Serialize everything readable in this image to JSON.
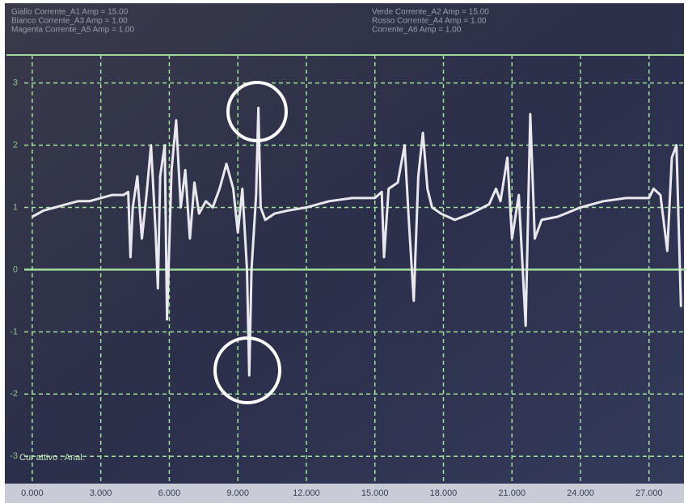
{
  "chart_data": {
    "type": "line",
    "header_left": [
      "Giallo  Corrente_A1  Amp = 15.00",
      "Bianco  Corrente_A3  Amp = 1.00",
      "Magenta  Corrente_A5  Amp = 1.00"
    ],
    "header_right": [
      "Verde  Corrente_A2  Amp = 15.00",
      "Rosso  Corrente_A4  Amp = 1.00",
      "Corrente_A6  Amp = 1.00"
    ],
    "cursor_label": "Cur attivo : Anal.",
    "color": "#e8e8ee",
    "grid": true,
    "xlim": [
      -0.35,
      28.6
    ],
    "ylim": [
      -3.4,
      3.45
    ],
    "xticks": [
      {
        "value": 0,
        "label": "0.000"
      },
      {
        "value": 3,
        "label": "3.000"
      },
      {
        "value": 6,
        "label": "6.000"
      },
      {
        "value": 9,
        "label": "9.000"
      },
      {
        "value": 12,
        "label": "12.000"
      },
      {
        "value": 15,
        "label": "15.000"
      },
      {
        "value": 18,
        "label": "18.000"
      },
      {
        "value": 21,
        "label": "21.000"
      },
      {
        "value": 24,
        "label": "24.000"
      },
      {
        "value": 27,
        "label": "27.000"
      }
    ],
    "yticks": [
      3,
      2,
      1,
      0,
      -1,
      -2,
      -3
    ],
    "x": [
      0.0,
      0.5,
      1.0,
      1.5,
      2.0,
      2.5,
      3.0,
      3.5,
      4.0,
      4.2,
      4.3,
      4.4,
      4.6,
      4.8,
      5.0,
      5.2,
      5.4,
      5.5,
      5.6,
      5.8,
      5.9,
      6.1,
      6.3,
      6.5,
      6.7,
      6.9,
      7.1,
      7.3,
      7.6,
      7.9,
      8.2,
      8.5,
      8.8,
      9.0,
      9.2,
      9.4,
      9.5,
      9.6,
      9.8,
      9.9,
      10.0,
      10.2,
      10.6,
      11.2,
      12.0,
      13.0,
      14.0,
      15.0,
      15.3,
      15.4,
      15.6,
      16.0,
      16.3,
      16.5,
      16.7,
      16.9,
      17.1,
      17.3,
      17.5,
      17.9,
      18.5,
      19.2,
      20.0,
      20.3,
      20.5,
      20.8,
      21.0,
      21.3,
      21.6,
      21.8,
      22.0,
      22.3,
      23.0,
      24.0,
      25.0,
      26.0,
      27.0,
      27.2,
      27.5,
      27.8,
      28.0,
      28.2,
      28.4
    ],
    "values": [
      0.85,
      0.95,
      1.0,
      1.05,
      1.1,
      1.1,
      1.15,
      1.2,
      1.2,
      1.25,
      0.2,
      1.0,
      1.5,
      0.5,
      1.2,
      2.0,
      0.6,
      -0.3,
      1.5,
      2.0,
      -0.8,
      1.6,
      2.4,
      1.0,
      1.6,
      0.5,
      1.4,
      0.9,
      1.1,
      1.0,
      1.3,
      1.7,
      1.3,
      0.6,
      1.3,
      0.0,
      -1.7,
      0.0,
      1.2,
      2.6,
      1.0,
      0.8,
      0.9,
      0.95,
      1.0,
      1.1,
      1.15,
      1.15,
      1.25,
      0.2,
      1.3,
      1.4,
      2.0,
      0.7,
      -0.5,
      1.5,
      2.2,
      1.3,
      1.0,
      0.9,
      0.8,
      0.9,
      1.05,
      1.3,
      1.1,
      1.8,
      0.5,
      1.2,
      -0.9,
      2.5,
      0.5,
      0.8,
      0.85,
      1.0,
      1.1,
      1.15,
      1.15,
      1.3,
      1.2,
      0.3,
      1.8,
      2.0,
      -0.6
    ]
  }
}
